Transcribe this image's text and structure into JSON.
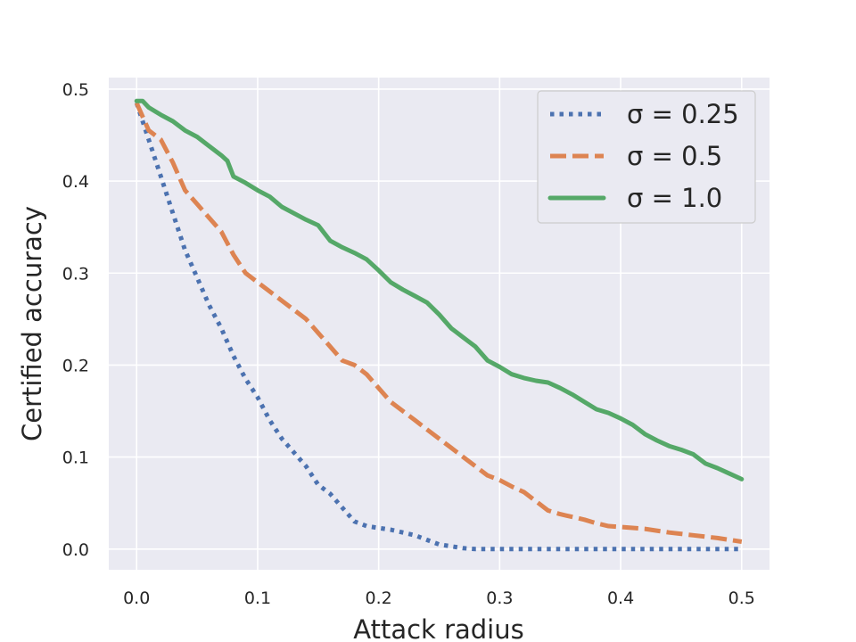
{
  "chart_data": {
    "type": "line",
    "title": "",
    "xlabel": "Attack radius",
    "ylabel": "Certified accuracy",
    "xlim": [
      -0.023,
      0.523
    ],
    "ylim": [
      -0.0225,
      0.5125
    ],
    "xticks": [
      "0.0",
      "0.1",
      "0.2",
      "0.3",
      "0.4",
      "0.5"
    ],
    "xtick_values": [
      0.0,
      0.1,
      0.2,
      0.3,
      0.4,
      0.5
    ],
    "yticks": [
      "0.0",
      "0.1",
      "0.2",
      "0.3",
      "0.4",
      "0.5"
    ],
    "ytick_values": [
      0.0,
      0.1,
      0.2,
      0.3,
      0.4,
      0.5
    ],
    "grid": true,
    "background": "#eaeaf2",
    "legend_position": "top-right",
    "series": [
      {
        "name": "σ = 0.25",
        "color": "#4c72b0",
        "style": "dotted",
        "x": [
          0.0,
          0.01,
          0.02,
          0.03,
          0.04,
          0.05,
          0.06,
          0.07,
          0.08,
          0.09,
          0.1,
          0.11,
          0.12,
          0.13,
          0.14,
          0.15,
          0.16,
          0.17,
          0.18,
          0.19,
          0.2,
          0.21,
          0.22,
          0.23,
          0.24,
          0.25,
          0.26,
          0.27,
          0.28,
          0.3,
          0.35,
          0.4,
          0.45,
          0.5
        ],
        "y": [
          0.485,
          0.445,
          0.405,
          0.365,
          0.325,
          0.295,
          0.265,
          0.24,
          0.21,
          0.185,
          0.165,
          0.14,
          0.12,
          0.105,
          0.09,
          0.07,
          0.06,
          0.045,
          0.03,
          0.025,
          0.023,
          0.021,
          0.018,
          0.015,
          0.01,
          0.005,
          0.003,
          0.001,
          0.0,
          0.0,
          0.0,
          0.0,
          0.0,
          0.0
        ]
      },
      {
        "name": "σ = 0.5",
        "color": "#dd8452",
        "style": "dashed",
        "x": [
          0.0,
          0.01,
          0.02,
          0.03,
          0.04,
          0.05,
          0.06,
          0.07,
          0.08,
          0.09,
          0.1,
          0.11,
          0.12,
          0.13,
          0.14,
          0.15,
          0.16,
          0.17,
          0.18,
          0.19,
          0.2,
          0.21,
          0.22,
          0.23,
          0.24,
          0.25,
          0.26,
          0.27,
          0.28,
          0.29,
          0.3,
          0.31,
          0.32,
          0.33,
          0.34,
          0.35,
          0.36,
          0.37,
          0.38,
          0.39,
          0.4,
          0.42,
          0.44,
          0.46,
          0.48,
          0.5
        ],
        "y": [
          0.485,
          0.455,
          0.445,
          0.42,
          0.39,
          0.375,
          0.36,
          0.345,
          0.32,
          0.3,
          0.29,
          0.28,
          0.27,
          0.26,
          0.25,
          0.235,
          0.22,
          0.205,
          0.2,
          0.19,
          0.175,
          0.16,
          0.15,
          0.14,
          0.13,
          0.12,
          0.11,
          0.1,
          0.09,
          0.08,
          0.075,
          0.068,
          0.062,
          0.052,
          0.042,
          0.038,
          0.035,
          0.032,
          0.028,
          0.025,
          0.024,
          0.022,
          0.018,
          0.015,
          0.012,
          0.008
        ]
      },
      {
        "name": "σ = 1.0",
        "color": "#55a868",
        "style": "solid",
        "x": [
          0.0,
          0.005,
          0.01,
          0.02,
          0.03,
          0.04,
          0.05,
          0.06,
          0.07,
          0.075,
          0.08,
          0.09,
          0.1,
          0.11,
          0.12,
          0.13,
          0.14,
          0.15,
          0.16,
          0.17,
          0.18,
          0.19,
          0.2,
          0.21,
          0.22,
          0.23,
          0.24,
          0.25,
          0.26,
          0.27,
          0.28,
          0.29,
          0.3,
          0.31,
          0.32,
          0.33,
          0.34,
          0.35,
          0.36,
          0.37,
          0.38,
          0.39,
          0.4,
          0.41,
          0.42,
          0.43,
          0.44,
          0.45,
          0.46,
          0.47,
          0.48,
          0.49,
          0.5
        ],
        "y": [
          0.487,
          0.487,
          0.48,
          0.472,
          0.465,
          0.455,
          0.448,
          0.438,
          0.428,
          0.422,
          0.405,
          0.398,
          0.39,
          0.383,
          0.372,
          0.365,
          0.358,
          0.352,
          0.335,
          0.328,
          0.322,
          0.315,
          0.303,
          0.29,
          0.282,
          0.275,
          0.268,
          0.255,
          0.24,
          0.23,
          0.22,
          0.205,
          0.198,
          0.19,
          0.186,
          0.183,
          0.181,
          0.175,
          0.168,
          0.16,
          0.152,
          0.148,
          0.142,
          0.135,
          0.125,
          0.118,
          0.112,
          0.108,
          0.103,
          0.093,
          0.088,
          0.082,
          0.076
        ]
      }
    ]
  }
}
